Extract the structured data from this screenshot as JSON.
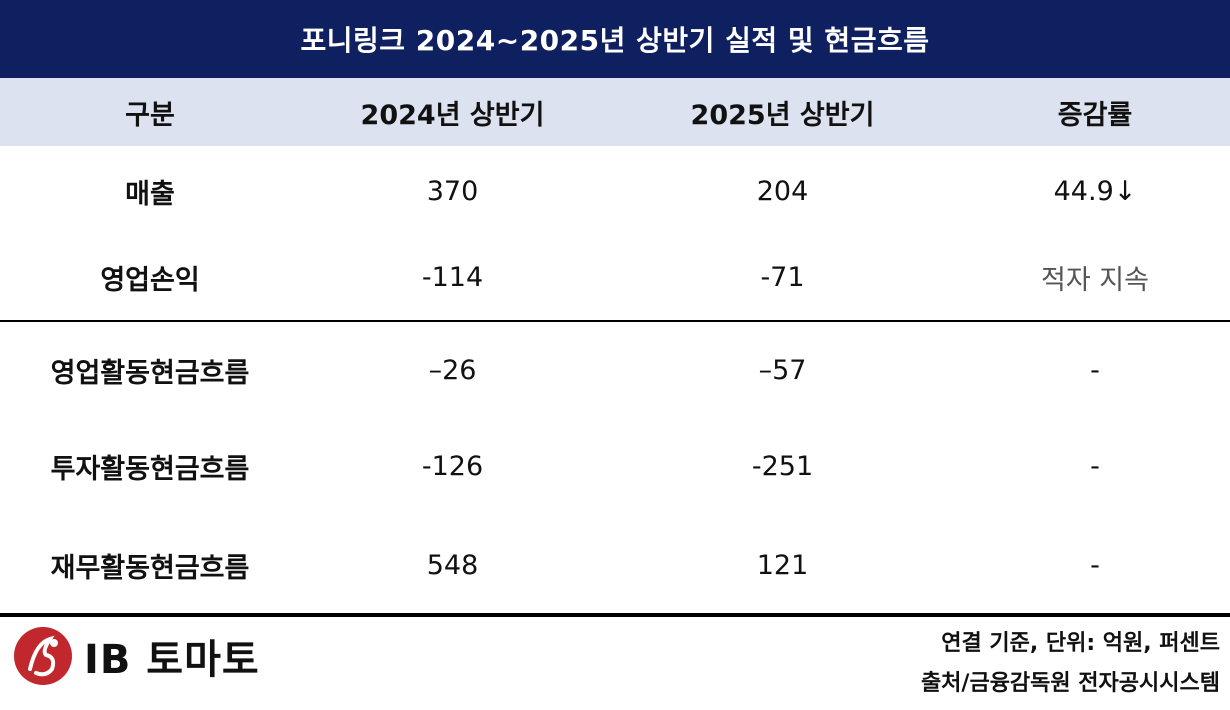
{
  "title": "포니링크 2024~2025년 상반기 실적 및  현금흐름",
  "header": {
    "col1": "구분",
    "col2": "2024년 상반기",
    "col3": "2025년 상반기",
    "col4": "증감률"
  },
  "rows": [
    {
      "label": "매출",
      "y2024": "370",
      "y2025": "204",
      "change": "44.9↓"
    },
    {
      "label": "영업손익",
      "y2024": "-114",
      "y2025": "-71",
      "change": "적자 지속"
    },
    {
      "label": "영업활동현금흐름",
      "y2024": "–26",
      "y2025": "–57",
      "change": "-"
    },
    {
      "label": "투자활동현금흐름",
      "y2024": "-126",
      "y2025": "-251",
      "change": "-"
    },
    {
      "label": "재무활동현금흐름",
      "y2024": "548",
      "y2025": "121",
      "change": "-"
    }
  ],
  "footer": {
    "logo_text": "IB 토마토",
    "note_unit": "연결 기준, 단위: 억원, 퍼센트",
    "note_source": "출처/금융감독원 전자공시시스템"
  },
  "colors": {
    "title_bg": "#0f2060",
    "header_bg": "#dde2f0",
    "logo_red": "#c0282d"
  }
}
